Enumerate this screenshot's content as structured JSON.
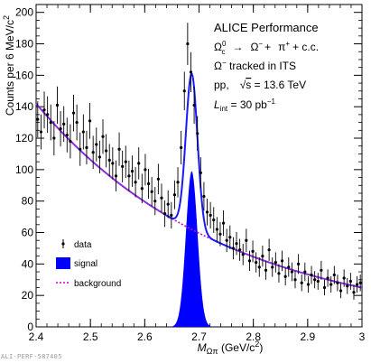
{
  "figure_id": "ALI-PERF-587405",
  "chart_data": {
    "type": "scatter",
    "xlabel": "M",
    "xlabel_sub": "Ωπ",
    "xlabel_unit": " (GeV/c",
    "xlabel_unit_sup": "2",
    "xlabel_unit_end": ")",
    "ylabel": "Counts per 6 MeV/c",
    "ylabel_sup": "2",
    "xlim": [
      2.4,
      3.0
    ],
    "ylim": [
      0,
      205
    ],
    "x_ticks": [
      "2.4",
      "2.5",
      "2.6",
      "2.7",
      "2.8",
      "2.9",
      "3"
    ],
    "x_tick_values": [
      2.4,
      2.5,
      2.6,
      2.7,
      2.8,
      2.9,
      3.0
    ],
    "y_ticks": [
      "0",
      "20",
      "40",
      "60",
      "80",
      "100",
      "120",
      "140",
      "160",
      "180",
      "200"
    ],
    "y_tick_values": [
      0,
      20,
      40,
      60,
      80,
      100,
      120,
      140,
      160,
      180,
      200
    ],
    "annotations": {
      "title": "ALICE Performance",
      "decay_omega": "Ω",
      "decay_omega_sub": "c",
      "decay_omega_sup": "0",
      "decay_arrow": "→",
      "decay_product1": "Ω",
      "decay_product1_sup": "−",
      "decay_plus": "+",
      "decay_product2": "π",
      "decay_product2_sup": "+",
      "decay_cc": "+ c.c.",
      "tracked_pre": "Ω",
      "tracked_sup": "−",
      "tracked_text": " tracked in ITS",
      "system": "pp,",
      "energy_pre": "√",
      "energy_s": "s",
      "energy_val": " = 13.6 TeV",
      "lumi_L": "L",
      "lumi_sub": "int",
      "lumi_val": " = 30 pb",
      "lumi_sup": "−1"
    },
    "legend": {
      "placement": "bottom-left",
      "entries": [
        "data",
        "signal",
        "background"
      ]
    },
    "colors": {
      "data": "#000000",
      "total_fit": "#1a1aff",
      "signal": "#0000ff",
      "background": "#cc00cc",
      "background_line": "#8a2be2"
    },
    "signal_model": {
      "mean": 2.6865,
      "sigma": 0.0106,
      "amplitude": 99
    },
    "background_model": {
      "form": "exponential",
      "at_2p4": 142,
      "at_3p0": 25
    },
    "series": [
      {
        "name": "data",
        "x": [
          2.403,
          2.409,
          2.415,
          2.421,
          2.427,
          2.433,
          2.439,
          2.445,
          2.451,
          2.457,
          2.463,
          2.469,
          2.475,
          2.481,
          2.487,
          2.493,
          2.499,
          2.505,
          2.511,
          2.517,
          2.523,
          2.529,
          2.535,
          2.541,
          2.547,
          2.553,
          2.559,
          2.565,
          2.571,
          2.577,
          2.583,
          2.589,
          2.595,
          2.601,
          2.607,
          2.613,
          2.619,
          2.625,
          2.631,
          2.637,
          2.643,
          2.649,
          2.655,
          2.661,
          2.667,
          2.673,
          2.679,
          2.685,
          2.691,
          2.697,
          2.703,
          2.709,
          2.715,
          2.721,
          2.727,
          2.733,
          2.739,
          2.745,
          2.751,
          2.757,
          2.763,
          2.769,
          2.775,
          2.781,
          2.787,
          2.793,
          2.799,
          2.805,
          2.811,
          2.817,
          2.823,
          2.829,
          2.835,
          2.841,
          2.847,
          2.853,
          2.859,
          2.865,
          2.871,
          2.877,
          2.883,
          2.889,
          2.895,
          2.901,
          2.907,
          2.913,
          2.919,
          2.925,
          2.931,
          2.937,
          2.943,
          2.949,
          2.955,
          2.961,
          2.967,
          2.973,
          2.979,
          2.985,
          2.991,
          2.997
        ],
        "y": [
          132,
          124,
          138,
          135,
          130,
          120,
          141,
          126,
          129,
          122,
          118,
          136,
          130,
          113,
          124,
          114,
          131,
          111,
          116,
          108,
          121,
          112,
          106,
          104,
          96,
          113,
          102,
          105,
          96,
          99,
          92,
          104,
          88,
          100,
          91,
          86,
          80,
          94,
          82,
          72,
          78,
          71,
          84,
          92,
          114,
          150,
          180,
          162,
          141,
          123,
          98,
          83,
          73,
          71,
          68,
          62,
          59,
          66,
          55,
          57,
          50,
          53,
          49,
          46,
          55,
          42,
          48,
          41,
          38,
          45,
          36,
          49,
          38,
          41,
          34,
          42,
          32,
          38,
          35,
          30,
          40,
          28,
          35,
          27,
          33,
          30,
          29,
          36,
          25,
          31,
          27,
          33,
          28,
          23,
          31,
          26,
          29,
          22,
          27,
          28
        ]
      }
    ]
  }
}
